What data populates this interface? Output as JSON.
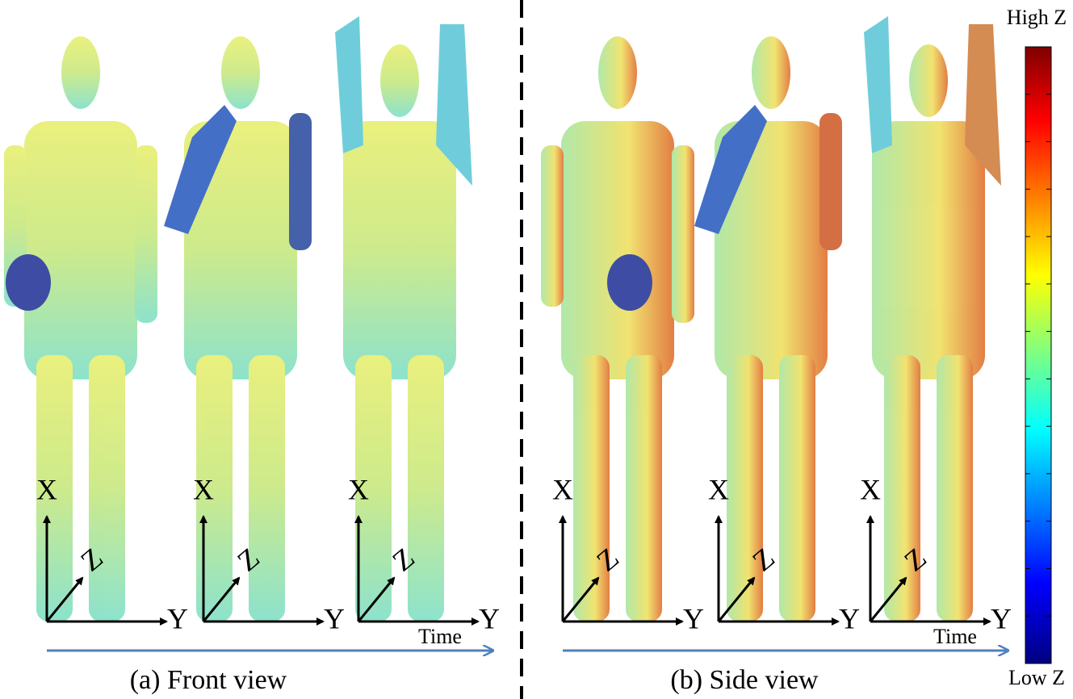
{
  "panels": [
    {
      "caption": "(a) Front view",
      "time_label": "Time",
      "figures": [
        {
          "x": "X",
          "y": "Y",
          "z": "Z"
        },
        {
          "x": "X",
          "y": "Y",
          "z": "Z"
        },
        {
          "x": "X",
          "y": "Y",
          "z": "Z"
        }
      ]
    },
    {
      "caption": "(b) Side view",
      "time_label": "Time",
      "figures": [
        {
          "x": "X",
          "y": "Y",
          "z": "Z"
        },
        {
          "x": "X",
          "y": "Y",
          "z": "Z"
        },
        {
          "x": "X",
          "y": "Y",
          "z": "Z"
        }
      ]
    }
  ],
  "colorbar": {
    "high": "High Z",
    "low": "Low Z"
  }
}
